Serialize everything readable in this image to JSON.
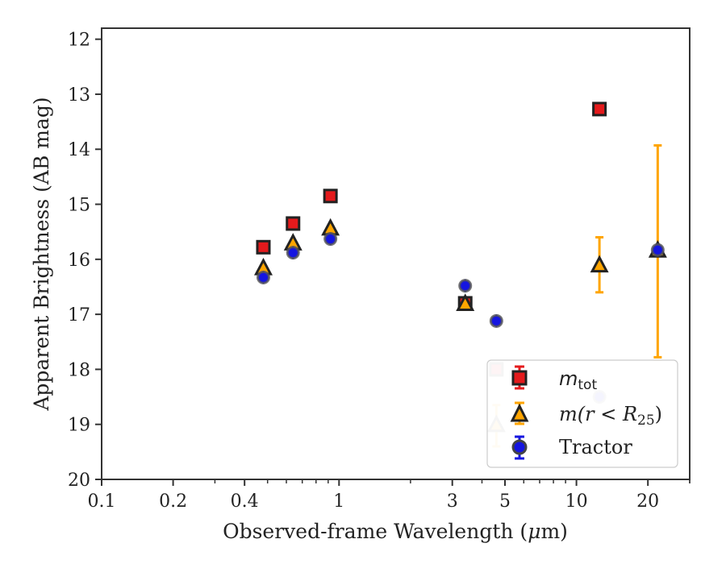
{
  "chart_data": {
    "type": "scatter",
    "xlabel": "Observed-frame Wavelength (μm)",
    "ylabel": "Apparent Brightness (AB mag)",
    "xscale": "log",
    "xlim": [
      0.1,
      30
    ],
    "ylim": [
      20,
      11.8
    ],
    "y_inverted": true,
    "grid": false,
    "x_ticks": [
      {
        "value": 0.1,
        "label": "0.1"
      },
      {
        "value": 0.2,
        "label": "0.2"
      },
      {
        "value": 0.4,
        "label": "0.4"
      },
      {
        "value": 1,
        "label": "1"
      },
      {
        "value": 3,
        "label": "3"
      },
      {
        "value": 5,
        "label": "5"
      },
      {
        "value": 10,
        "label": "10"
      },
      {
        "value": 20,
        "label": "20"
      }
    ],
    "y_ticks": [
      {
        "value": 12,
        "label": "12"
      },
      {
        "value": 13,
        "label": "13"
      },
      {
        "value": 14,
        "label": "14"
      },
      {
        "value": 15,
        "label": "15"
      },
      {
        "value": 16,
        "label": "16"
      },
      {
        "value": 17,
        "label": "17"
      },
      {
        "value": 18,
        "label": "18"
      },
      {
        "value": 19,
        "label": "19"
      },
      {
        "value": 20,
        "label": "20"
      }
    ],
    "legend_position": "lower-right",
    "series": [
      {
        "name": "m_tot",
        "marker": "square",
        "color": "#e41a1c",
        "errcolor": "#e41a1c",
        "points": [
          {
            "x": 0.48,
            "y": 15.78
          },
          {
            "x": 0.64,
            "y": 15.35
          },
          {
            "x": 0.92,
            "y": 14.85
          },
          {
            "x": 3.4,
            "y": 16.8
          },
          {
            "x": 4.6,
            "y": 18.0,
            "faded": true
          },
          {
            "x": 12.5,
            "y": 13.27
          }
        ]
      },
      {
        "name": "m(r < R25)",
        "marker": "triangle",
        "color": "#ffa500",
        "errcolor": "#ffa500",
        "points": [
          {
            "x": 0.48,
            "y": 16.15
          },
          {
            "x": 0.64,
            "y": 15.7
          },
          {
            "x": 0.92,
            "y": 15.43
          },
          {
            "x": 3.4,
            "y": 16.8
          },
          {
            "x": 4.6,
            "y": 19.0,
            "err_low": 18.65,
            "err_high": 19.4,
            "faded": true
          },
          {
            "x": 12.5,
            "y": 16.1,
            "err_low": 15.6,
            "err_high": 16.6
          },
          {
            "x": 22,
            "y": 15.83,
            "err_low": 13.93,
            "err_high": 17.78
          }
        ]
      },
      {
        "name": "Tractor",
        "marker": "circle",
        "color": "#1515e0",
        "errcolor": "#1515e0",
        "points": [
          {
            "x": 0.48,
            "y": 16.33
          },
          {
            "x": 0.64,
            "y": 15.88
          },
          {
            "x": 0.92,
            "y": 15.63
          },
          {
            "x": 3.4,
            "y": 16.48
          },
          {
            "x": 4.6,
            "y": 17.12
          },
          {
            "x": 12.5,
            "y": 18.5,
            "faded": true
          },
          {
            "x": 22,
            "y": 15.83
          }
        ]
      }
    ]
  },
  "legend": {
    "mtot_main": "m",
    "mtot_sub": "tot",
    "mr_prefix": "m(r < R",
    "mr_sub": "25",
    "mr_suffix": ")",
    "tractor": "Tractor"
  },
  "xlabel_main": "Observed-frame Wavelength (",
  "xlabel_mu": "μ",
  "xlabel_end": "m)",
  "ylabel_text": "Apparent Brightness (AB mag)"
}
